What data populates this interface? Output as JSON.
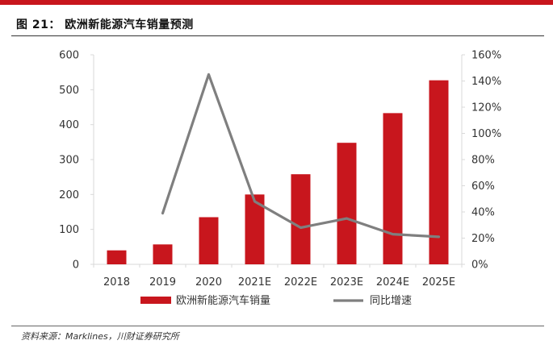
{
  "header": {
    "title": "图 21： 欧洲新能源汽车销量预测"
  },
  "footer": {
    "source": "资料来源：Marklines，川财证券研究所"
  },
  "colors": {
    "accent": "#c8161d",
    "bar": "#c8161d",
    "line": "#7f7f7f",
    "axis_text": "#333333",
    "axis_line": "#d9d9d9"
  },
  "chart_data": {
    "type": "bar",
    "title": "欧洲新能源汽车销量预测",
    "categories": [
      "2018",
      "2019",
      "2020",
      "2021E",
      "2022E",
      "2023E",
      "2024E",
      "2025E"
    ],
    "series": [
      {
        "name": "欧洲新能源汽车销量",
        "type": "bar",
        "axis": "left",
        "values": [
          40,
          57,
          135,
          200,
          258,
          348,
          433,
          527
        ]
      },
      {
        "name": "同比增速",
        "type": "line",
        "axis": "right",
        "values": [
          null,
          0.39,
          1.45,
          0.48,
          0.28,
          0.35,
          0.23,
          0.21
        ]
      }
    ],
    "y_left": {
      "lim": [
        0,
        600
      ],
      "ticks": [
        0,
        100,
        200,
        300,
        400,
        500,
        600
      ],
      "tick_labels": [
        "0",
        "100",
        "200",
        "300",
        "400",
        "500",
        "600"
      ]
    },
    "y_right": {
      "lim": [
        0,
        1.6
      ],
      "ticks": [
        0,
        0.2,
        0.4,
        0.6,
        0.8,
        1.0,
        1.2,
        1.4,
        1.6
      ],
      "tick_labels": [
        "0%",
        "20%",
        "40%",
        "60%",
        "80%",
        "100%",
        "120%",
        "140%",
        "160%"
      ]
    },
    "legend": {
      "position": "bottom-center",
      "entries": [
        "欧洲新能源汽车销量",
        "同比增速"
      ]
    },
    "grid": false
  }
}
